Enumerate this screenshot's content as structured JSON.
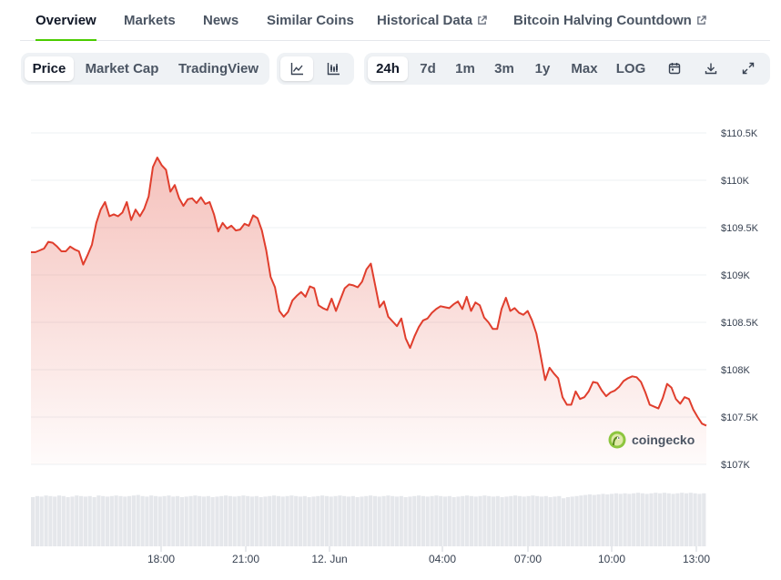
{
  "tabs": [
    {
      "label": "Overview",
      "external": false
    },
    {
      "label": "Markets",
      "external": false
    },
    {
      "label": "News",
      "external": false
    },
    {
      "label": "Similar Coins",
      "external": false
    },
    {
      "label": "Historical Data",
      "external": true
    },
    {
      "label": "Bitcoin Halving Countdown",
      "external": true
    }
  ],
  "active_tab": "Overview",
  "view_modes": [
    "Price",
    "Market Cap",
    "TradingView"
  ],
  "active_view": "Price",
  "chart_types": [
    "line-chart-icon",
    "candlestick-icon"
  ],
  "active_chart_type": "line-chart-icon",
  "ranges": [
    "24h",
    "7d",
    "1m",
    "3m",
    "1y",
    "Max",
    "LOG"
  ],
  "active_range": "24h",
  "tools": [
    "calendar-icon",
    "download-icon",
    "expand-icon"
  ],
  "watermark": "coingecko",
  "colors": {
    "line": "#e03e2d",
    "accent": "#4bcc00",
    "grid": "#eef0f3",
    "volume": "#e5e7eb"
  },
  "chart_data": {
    "type": "area",
    "x_ticks": [
      "18:00",
      "21:00",
      "12. Jun",
      "04:00",
      "07:00",
      "10:00",
      "13:00"
    ],
    "y_ticks": [
      "$110.5K",
      "$110K",
      "$109.5K",
      "$109K",
      "$108.5K",
      "$108K",
      "$107.5K",
      "$107K"
    ],
    "ylim": [
      107000,
      110500
    ],
    "grid": true,
    "series": [
      {
        "values": [
          109240,
          109240,
          109260,
          109280,
          109350,
          109340,
          109300,
          109250,
          109250,
          109300,
          109270,
          109250,
          109110,
          109210,
          109320,
          109550,
          109690,
          109770,
          109620,
          109640,
          109620,
          109660,
          109770,
          109580,
          109690,
          109620,
          109700,
          109830,
          110140,
          110240,
          110160,
          110110,
          109880,
          109950,
          109810,
          109730,
          109800,
          109810,
          109760,
          109820,
          109750,
          109770,
          109640,
          109460,
          109550,
          109490,
          109520,
          109470,
          109480,
          109540,
          109520,
          109630,
          109600,
          109470,
          109260,
          108980,
          108870,
          108620,
          108560,
          108610,
          108730,
          108780,
          108820,
          108770,
          108880,
          108860,
          108680,
          108650,
          108630,
          108750,
          108620,
          108740,
          108860,
          108900,
          108890,
          108870,
          108930,
          109060,
          109120,
          108890,
          108660,
          108720,
          108560,
          108510,
          108460,
          108540,
          108330,
          108230,
          108350,
          108450,
          108520,
          108540,
          108600,
          108640,
          108670,
          108660,
          108650,
          108690,
          108720,
          108640,
          108770,
          108620,
          108710,
          108680,
          108550,
          108500,
          108430,
          108430,
          108640,
          108760,
          108620,
          108650,
          108600,
          108580,
          108620,
          108520,
          108380,
          108140,
          107890,
          108020,
          107960,
          107910,
          107710,
          107630,
          107630,
          107770,
          107690,
          107710,
          107770,
          107870,
          107860,
          107780,
          107720,
          107760,
          107780,
          107820,
          107880,
          107910,
          107930,
          107920,
          107870,
          107760,
          107630,
          107610,
          107590,
          107700,
          107850,
          107810,
          107690,
          107640,
          107710,
          107690,
          107580,
          107500,
          107430,
          107410
        ]
      }
    ],
    "volume": {
      "values": [
        0.9,
        0.92,
        0.91,
        0.93,
        0.92,
        0.91,
        0.93,
        0.92,
        0.9,
        0.91,
        0.93,
        0.92,
        0.91,
        0.92,
        0.9,
        0.93,
        0.92,
        0.91,
        0.92,
        0.93,
        0.92,
        0.91,
        0.92,
        0.93,
        0.94,
        0.92,
        0.91,
        0.93,
        0.92,
        0.91,
        0.92,
        0.93,
        0.91,
        0.92,
        0.9,
        0.91,
        0.92,
        0.93,
        0.92,
        0.91,
        0.92,
        0.9,
        0.91,
        0.92,
        0.93,
        0.92,
        0.91,
        0.92,
        0.93,
        0.92,
        0.91,
        0.92,
        0.9,
        0.91,
        0.92,
        0.93,
        0.92,
        0.91,
        0.92,
        0.93,
        0.92,
        0.91,
        0.92,
        0.9,
        0.91,
        0.92,
        0.93,
        0.92,
        0.91,
        0.92,
        0.93,
        0.92,
        0.91,
        0.92,
        0.9,
        0.91,
        0.92,
        0.93,
        0.92,
        0.91,
        0.92,
        0.93,
        0.92,
        0.91,
        0.92,
        0.9,
        0.91,
        0.92,
        0.93,
        0.92,
        0.91,
        0.92,
        0.93,
        0.92,
        0.91,
        0.92,
        0.9,
        0.91,
        0.92,
        0.93,
        0.92,
        0.91,
        0.92,
        0.93,
        0.92,
        0.91,
        0.92,
        0.9,
        0.91,
        0.92,
        0.93,
        0.92,
        0.91,
        0.92,
        0.93,
        0.92,
        0.91,
        0.92,
        0.9,
        0.91,
        0.92,
        0.88,
        0.9,
        0.91,
        0.92,
        0.93,
        0.94,
        0.95,
        0.94,
        0.95,
        0.96,
        0.95,
        0.96,
        0.97,
        0.96,
        0.97,
        0.96,
        0.97,
        0.98,
        0.97,
        0.96,
        0.97,
        0.98,
        0.97,
        0.98,
        0.97,
        0.96,
        0.97,
        0.98,
        0.97,
        0.98,
        0.97,
        0.96,
        0.97
      ]
    }
  }
}
